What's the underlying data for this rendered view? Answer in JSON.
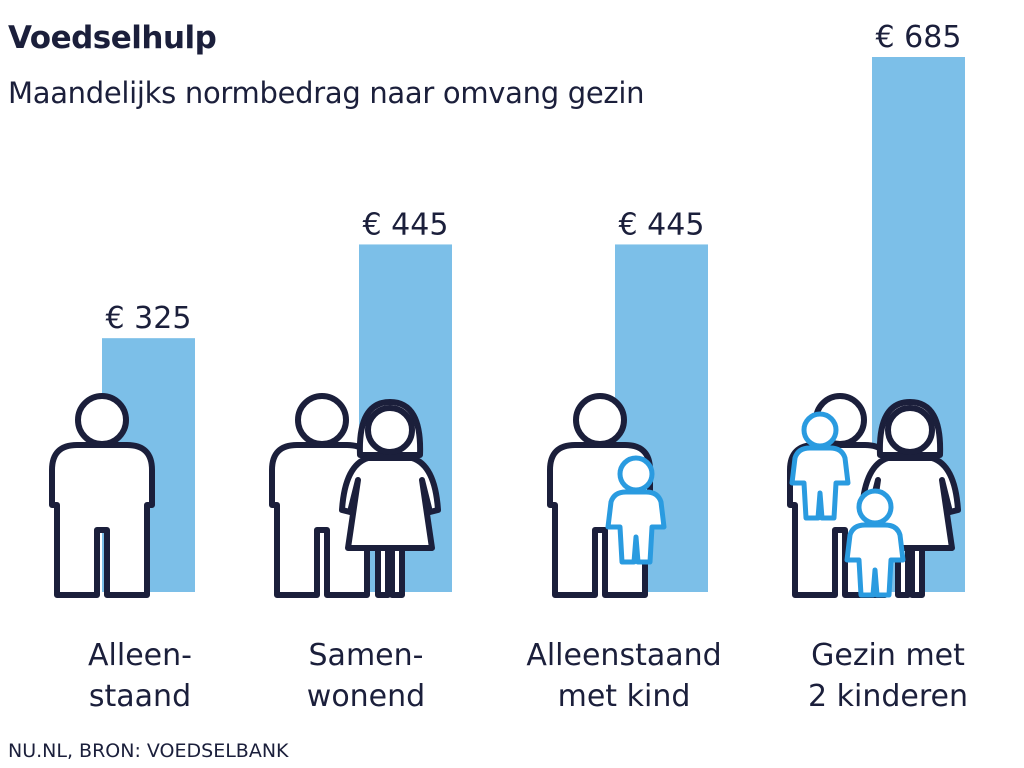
{
  "title": "Voedselhulp",
  "subtitle": "Maandelijks normbedrag naar omvang gezin",
  "source": "NU.NL, BRON: VOEDSELBANK",
  "colors": {
    "bar": "#7cbfe8",
    "text": "#1b1f3b",
    "figure_outline": "#1b1f3b",
    "child_outline": "#2a9be0"
  },
  "chart_data": {
    "type": "bar",
    "title": "Voedselhulp",
    "subtitle": "Maandelijks normbedrag naar omvang gezin",
    "categories": [
      [
        "Alleen-",
        "staand"
      ],
      [
        "Samen-",
        "wonend"
      ],
      [
        "Alleenstaand",
        "met kind"
      ],
      [
        "Gezin met",
        "2 kinderen"
      ]
    ],
    "values": [
      325,
      445,
      445,
      685
    ],
    "value_labels": [
      "€ 325",
      "€ 445",
      "€ 445",
      "€ 685"
    ],
    "icons": [
      "single-adult-icon",
      "couple-icon",
      "adult-with-child-icon",
      "family-two-children-icon"
    ],
    "ylim": [
      0,
      685
    ],
    "grid": false,
    "legend": "none"
  }
}
